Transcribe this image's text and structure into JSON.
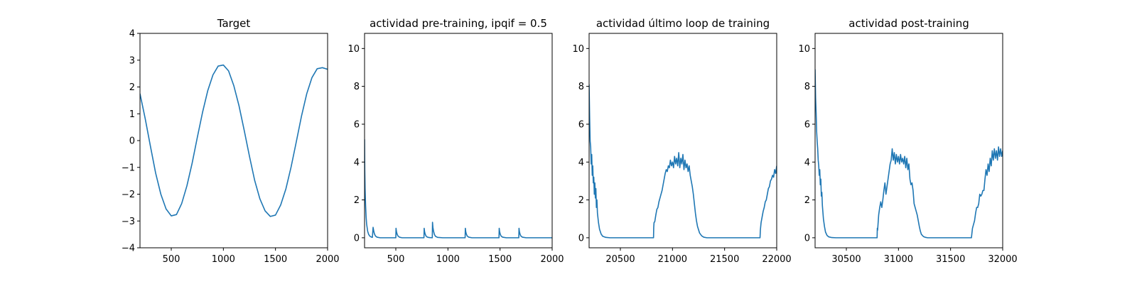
{
  "chart_data": [
    {
      "type": "line",
      "title": "Target",
      "xlabel": "",
      "ylabel": "",
      "xlim": [
        200,
        2000
      ],
      "ylim": [
        -4,
        4
      ],
      "xticks": [
        500,
        1000,
        1500,
        2000
      ],
      "yticks": [
        -4,
        -3,
        -2,
        -1,
        0,
        1,
        2,
        3,
        4
      ],
      "grid": false,
      "color": "#1f77b4",
      "series": [
        {
          "x": [
            200,
            250,
            300,
            350,
            400,
            450,
            500,
            550,
            600,
            650,
            700,
            750,
            800,
            850,
            900,
            950,
            1000,
            1050,
            1100,
            1150,
            1200,
            1250,
            1300,
            1350,
            1400,
            1450,
            1500,
            1550,
            1600,
            1650,
            1700,
            1750,
            1800,
            1850,
            1900,
            1950,
            2000
          ],
          "values": [
            1.75,
            0.82,
            -0.21,
            -1.21,
            -2.0,
            -2.55,
            -2.81,
            -2.76,
            -2.35,
            -1.69,
            -0.85,
            0.12,
            1.05,
            1.86,
            2.45,
            2.78,
            2.82,
            2.6,
            2.05,
            1.3,
            0.38,
            -0.58,
            -1.48,
            -2.17,
            -2.62,
            -2.83,
            -2.78,
            -2.4,
            -1.8,
            -0.98,
            -0.04,
            0.92,
            1.75,
            2.35,
            2.68,
            2.72,
            2.66
          ]
        }
      ]
    },
    {
      "type": "line",
      "title": "actividad pre-training, ipqif = 0.5",
      "xlabel": "",
      "ylabel": "",
      "xlim": [
        200,
        2000
      ],
      "ylim": [
        -0.53,
        10.8
      ],
      "xticks": [
        500,
        1000,
        1500,
        2000
      ],
      "yticks": [
        0,
        2,
        4,
        6,
        8,
        10
      ],
      "grid": false,
      "color": "#1f77b4",
      "series": [
        {
          "x": [
            200,
            202,
            205,
            210,
            215,
            220,
            230,
            240,
            250,
            260,
            275,
            282,
            288,
            295,
            305,
            320,
            350,
            400,
            450,
            500,
            502,
            506,
            512,
            520,
            535,
            560,
            600,
            700,
            770,
            772,
            776,
            782,
            790,
            800,
            820,
            850,
            852,
            856,
            862,
            870,
            880,
            900,
            950,
            1000,
            1100,
            1165,
            1167,
            1171,
            1177,
            1185,
            1200,
            1230,
            1300,
            1400,
            1490,
            1492,
            1496,
            1502,
            1510,
            1525,
            1560,
            1600,
            1680,
            1682,
            1686,
            1692,
            1700,
            1715,
            1750,
            1800,
            1900,
            2000
          ],
          "values": [
            5.2,
            3.6,
            2.6,
            1.7,
            1.1,
            0.72,
            0.34,
            0.17,
            0.09,
            0.05,
            0.02,
            0.55,
            0.36,
            0.2,
            0.09,
            0.03,
            0.0,
            0.0,
            0.0,
            0.0,
            0.5,
            0.33,
            0.2,
            0.1,
            0.03,
            0.0,
            0.0,
            0.0,
            0.0,
            0.5,
            0.32,
            0.19,
            0.09,
            0.04,
            0.01,
            0.0,
            0.82,
            0.55,
            0.35,
            0.18,
            0.08,
            0.02,
            0.0,
            0.0,
            0.0,
            0.0,
            0.5,
            0.32,
            0.19,
            0.09,
            0.03,
            0.0,
            0.0,
            0.0,
            0.0,
            0.5,
            0.32,
            0.19,
            0.09,
            0.03,
            0.0,
            0.0,
            0.0,
            0.5,
            0.32,
            0.19,
            0.09,
            0.03,
            0.0,
            0.0,
            0.0,
            0.0
          ]
        }
      ]
    },
    {
      "type": "line",
      "title": "actividad último loop de training",
      "xlabel": "",
      "ylabel": "",
      "xlim": [
        20200,
        22000
      ],
      "ylim": [
        -0.53,
        10.8
      ],
      "xticks": [
        20500,
        21000,
        21500,
        22000
      ],
      "yticks": [
        0,
        2,
        4,
        6,
        8,
        10
      ],
      "grid": false,
      "color": "#1f77b4",
      "series": [
        {
          "x": [
            20200,
            20205,
            20210,
            20215,
            20220,
            20225,
            20230,
            20235,
            20240,
            20245,
            20250,
            20255,
            20260,
            20265,
            20270,
            20275,
            20280,
            20290,
            20300,
            20315,
            20330,
            20360,
            20400,
            20500,
            20600,
            20700,
            20800,
            20818,
            20820,
            20823,
            20830,
            20840,
            20850,
            20860,
            20870,
            20880,
            20890,
            20900,
            20910,
            20920,
            20930,
            20940,
            20950,
            20960,
            20970,
            20980,
            20990,
            21000,
            21010,
            21020,
            21030,
            21040,
            21050,
            21060,
            21070,
            21080,
            21090,
            21100,
            21110,
            21120,
            21130,
            21140,
            21150,
            21160,
            21170,
            21180,
            21190,
            21200,
            21210,
            21220,
            21230,
            21240,
            21260,
            21280,
            21300,
            21330,
            21360,
            21400,
            21500,
            21600,
            21700,
            21800,
            21840,
            21843,
            21850,
            21860,
            21870,
            21880,
            21890,
            21900,
            21910,
            21920,
            21930,
            21940,
            21950,
            21960,
            21970,
            21980,
            21990,
            22000
          ],
          "values": [
            8.1,
            6.4,
            5.1,
            4.8,
            3.9,
            4.4,
            3.3,
            3.8,
            2.9,
            3.2,
            2.3,
            2.9,
            2.1,
            2.6,
            1.6,
            2.0,
            1.3,
            0.8,
            0.45,
            0.2,
            0.08,
            0.02,
            0.0,
            0.0,
            0.0,
            0.0,
            0.0,
            0.0,
            0.55,
            0.8,
            0.85,
            1.2,
            1.5,
            1.6,
            1.9,
            2.1,
            2.3,
            2.5,
            2.8,
            3.1,
            3.4,
            3.6,
            3.5,
            3.8,
            3.7,
            4.1,
            3.8,
            4.0,
            3.7,
            4.3,
            3.9,
            4.2,
            3.8,
            4.5,
            3.7,
            4.2,
            3.9,
            4.4,
            3.6,
            4.1,
            3.7,
            3.9,
            3.5,
            3.8,
            3.3,
            3.0,
            2.7,
            2.3,
            1.8,
            1.3,
            0.9,
            0.6,
            0.25,
            0.1,
            0.03,
            0.0,
            0.0,
            0.0,
            0.0,
            0.0,
            0.0,
            0.0,
            0.0,
            0.4,
            0.8,
            1.1,
            1.4,
            1.6,
            1.9,
            2.0,
            2.3,
            2.6,
            2.7,
            3.0,
            3.1,
            3.3,
            3.2,
            3.6,
            3.4,
            3.8
          ]
        }
      ]
    },
    {
      "type": "line",
      "title": "actividad post-training",
      "xlabel": "",
      "ylabel": "",
      "xlim": [
        30200,
        32000
      ],
      "ylim": [
        -0.53,
        10.8
      ],
      "xticks": [
        30500,
        31000,
        31500,
        32000
      ],
      "yticks": [
        0,
        2,
        4,
        6,
        8,
        10
      ],
      "grid": false,
      "color": "#1f77b4",
      "series": [
        {
          "x": [
            30200,
            30205,
            30210,
            30215,
            30220,
            30225,
            30230,
            30235,
            30240,
            30245,
            30250,
            30255,
            30260,
            30265,
            30270,
            30280,
            30290,
            30300,
            30315,
            30330,
            30360,
            30400,
            30500,
            30600,
            30700,
            30795,
            30797,
            30800,
            30810,
            30820,
            30830,
            30840,
            30850,
            30860,
            30870,
            30880,
            30890,
            30900,
            30910,
            30920,
            30930,
            30940,
            30950,
            30960,
            30970,
            30980,
            30990,
            31000,
            31010,
            31020,
            31030,
            31040,
            31050,
            31060,
            31070,
            31080,
            31090,
            31100,
            31110,
            31120,
            31130,
            31140,
            31150,
            31160,
            31170,
            31180,
            31190,
            31200,
            31210,
            31220,
            31240,
            31260,
            31280,
            31300,
            31330,
            31360,
            31400,
            31500,
            31600,
            31700,
            31705,
            31710,
            31720,
            31730,
            31740,
            31750,
            31760,
            31770,
            31780,
            31790,
            31800,
            31810,
            31820,
            31830,
            31840,
            31850,
            31860,
            31870,
            31880,
            31890,
            31900,
            31910,
            31920,
            31930,
            31940,
            31950,
            31960,
            31970,
            31980,
            31990,
            32000
          ],
          "values": [
            8.9,
            7.4,
            6.6,
            5.6,
            5.1,
            4.7,
            4.1,
            3.8,
            3.3,
            3.6,
            2.8,
            3.1,
            2.2,
            2.4,
            1.7,
            1.0,
            0.6,
            0.3,
            0.12,
            0.05,
            0.01,
            0.0,
            0.0,
            0.0,
            0.0,
            0.0,
            0.5,
            0.4,
            1.2,
            1.6,
            1.9,
            1.6,
            2.0,
            2.5,
            2.9,
            2.3,
            2.7,
            3.1,
            3.5,
            3.9,
            4.1,
            4.7,
            4.1,
            4.5,
            3.9,
            4.4,
            4.0,
            4.3,
            3.9,
            4.4,
            4.0,
            4.2,
            3.9,
            4.3,
            3.7,
            4.2,
            3.6,
            3.9,
            3.1,
            2.8,
            2.9,
            2.5,
            1.8,
            1.6,
            1.4,
            1.2,
            0.9,
            0.6,
            0.35,
            0.18,
            0.06,
            0.02,
            0.0,
            0.0,
            0.0,
            0.0,
            0.0,
            0.0,
            0.0,
            0.0,
            0.25,
            0.5,
            0.7,
            0.9,
            1.3,
            1.6,
            1.6,
            1.8,
            2.3,
            2.2,
            2.3,
            2.5,
            2.5,
            3.1,
            3.6,
            3.3,
            3.9,
            3.5,
            4.2,
            3.8,
            4.6,
            4.1,
            4.7,
            4.2,
            4.6,
            4.1,
            4.8,
            4.3,
            4.7,
            4.3,
            4.6
          ]
        }
      ]
    }
  ]
}
